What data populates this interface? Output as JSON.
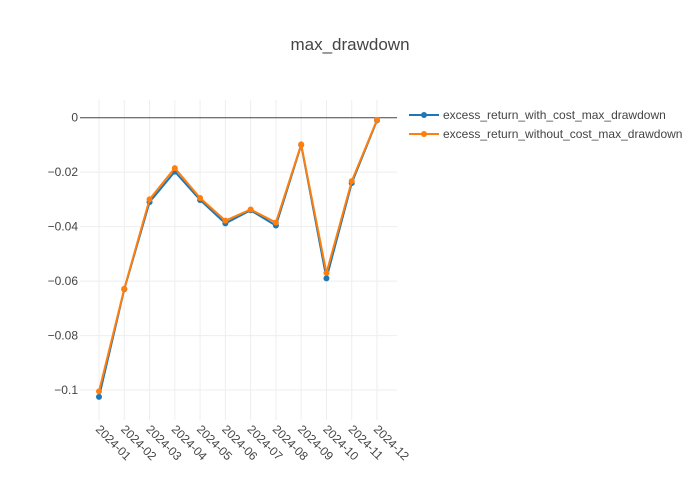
{
  "chart_data": {
    "type": "line",
    "title": "max_drawdown",
    "xlabel": "",
    "ylabel": "",
    "categories": [
      "2024-01",
      "2024-02",
      "2024-03",
      "2024-04",
      "2024-05",
      "2024-06",
      "2024-07",
      "2024-08",
      "2024-09",
      "2024-10",
      "2024-11",
      "2024-12"
    ],
    "yticks": [
      0,
      -0.02,
      -0.04,
      -0.06,
      -0.08,
      -0.1
    ],
    "ytick_labels": [
      "0",
      "−0.02",
      "−0.04",
      "−0.06",
      "−0.08",
      "−0.1"
    ],
    "ylim": [
      -0.111,
      0.0065
    ],
    "grid": true,
    "legend_position": "top-right",
    "series": [
      {
        "name": "excess_return_with_cost_max_drawdown",
        "color": "#1f77b4",
        "values": [
          -0.1025,
          -0.063,
          -0.031,
          -0.0198,
          -0.0302,
          -0.0388,
          -0.034,
          -0.0396,
          -0.01,
          -0.059,
          -0.024,
          -0.001
        ]
      },
      {
        "name": "excess_return_without_cost_max_drawdown",
        "color": "#ff7f0e",
        "values": [
          -0.1005,
          -0.0628,
          -0.03,
          -0.0185,
          -0.0295,
          -0.0378,
          -0.0337,
          -0.0385,
          -0.0098,
          -0.057,
          -0.0233,
          -0.0008
        ]
      }
    ]
  }
}
